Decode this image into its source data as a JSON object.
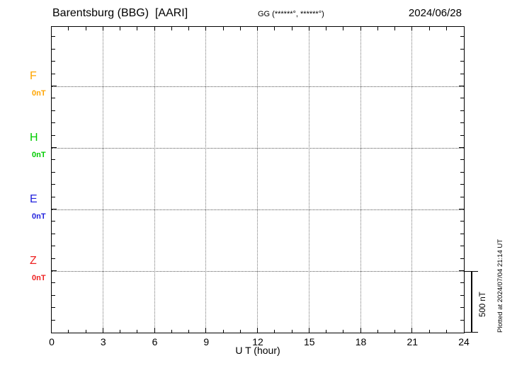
{
  "header": {
    "station_title": "Barentsburg (BBG)  [AARI]",
    "coords_label": "GG (******°, ******°)",
    "date": "2024/06/28"
  },
  "components": [
    {
      "letter": "F",
      "offset_label": "0nT",
      "color": "#FFA500"
    },
    {
      "letter": "H",
      "offset_label": "0nT",
      "color": "#00CC00"
    },
    {
      "letter": "E",
      "offset_label": "0nT",
      "color": "#2222DD"
    },
    {
      "letter": "Z",
      "offset_label": "0nT",
      "color": "#EE2222"
    }
  ],
  "axis": {
    "x_ticks": [
      "0",
      "3",
      "6",
      "9",
      "12",
      "15",
      "18",
      "21",
      "24"
    ],
    "x_label": "U T (hour)"
  },
  "scale_bar": {
    "label": "500 nT"
  },
  "footer_note": "Plotted at 2024/07/04 21:14 UT",
  "chart_data": {
    "type": "line",
    "title": "Barentsburg (BBG) [AARI] magnetogram",
    "subtitle": "GG (******°, ******°)",
    "date": "2024/06/28",
    "xlabel": "U T (hour)",
    "xlim": [
      0,
      24
    ],
    "x_tick_labels": [
      0,
      3,
      6,
      9,
      12,
      15,
      18,
      21,
      24
    ],
    "x_minor_tick_hours": 1,
    "grid": true,
    "legend_position": "left margin",
    "y_scale_reference": "500 nT",
    "series": [
      {
        "name": "F",
        "baseline_label": "0nT",
        "color": "#FFA500",
        "values": []
      },
      {
        "name": "H",
        "baseline_label": "0nT",
        "color": "#00CC00",
        "values": []
      },
      {
        "name": "E",
        "baseline_label": "0nT",
        "color": "#2222DD",
        "values": []
      },
      {
        "name": "Z",
        "baseline_label": "0nT",
        "color": "#EE2222",
        "values": []
      }
    ]
  }
}
